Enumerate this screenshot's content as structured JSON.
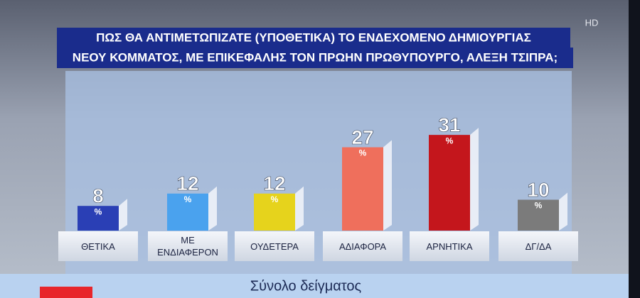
{
  "chart_data": {
    "type": "bar",
    "title": [
      "ΠΩΣ ΘΑ ΑΝΤΙΜΕΤΩΠΙΖΑΤΕ (ΥΠΟΘΕΤΙΚΑ) ΤΟ ΕΝΔΕΧΟΜΕΝΟ ΔΗΜΙΟΥΡΓΙΑΣ",
      "ΝΕΟΥ ΚΟΜΜΑΤΟΣ, ΜΕ ΕΠΙΚΕΦΑΛΗΣ ΤΟΝ ΠΡΩΗΝ ΠΡΩΘΥΠΟΥΡΓΟ, ΑΛΕΞΗ ΤΣΙΠΡΑ;"
    ],
    "categories": [
      "ΘΕΤΙΚΑ",
      "ΜΕ ΕΝΔΙΑΦΕΡΟΝ",
      "ΟΥΔΕΤΕΡΑ",
      "ΑΔΙΑΦΟΡΑ",
      "ΑΡΝΗΤΙΚΑ",
      "ΔΓ/ΔΑ"
    ],
    "values": [
      8,
      12,
      12,
      27,
      31,
      10
    ],
    "value_unit": "%",
    "colors": [
      "#2a3fb5",
      "#4aa2ee",
      "#e6d31c",
      "#ef6f5c",
      "#c4161c",
      "#7b7b7b"
    ],
    "footer": "Σύνολο δείγματος",
    "logo": "HD"
  }
}
